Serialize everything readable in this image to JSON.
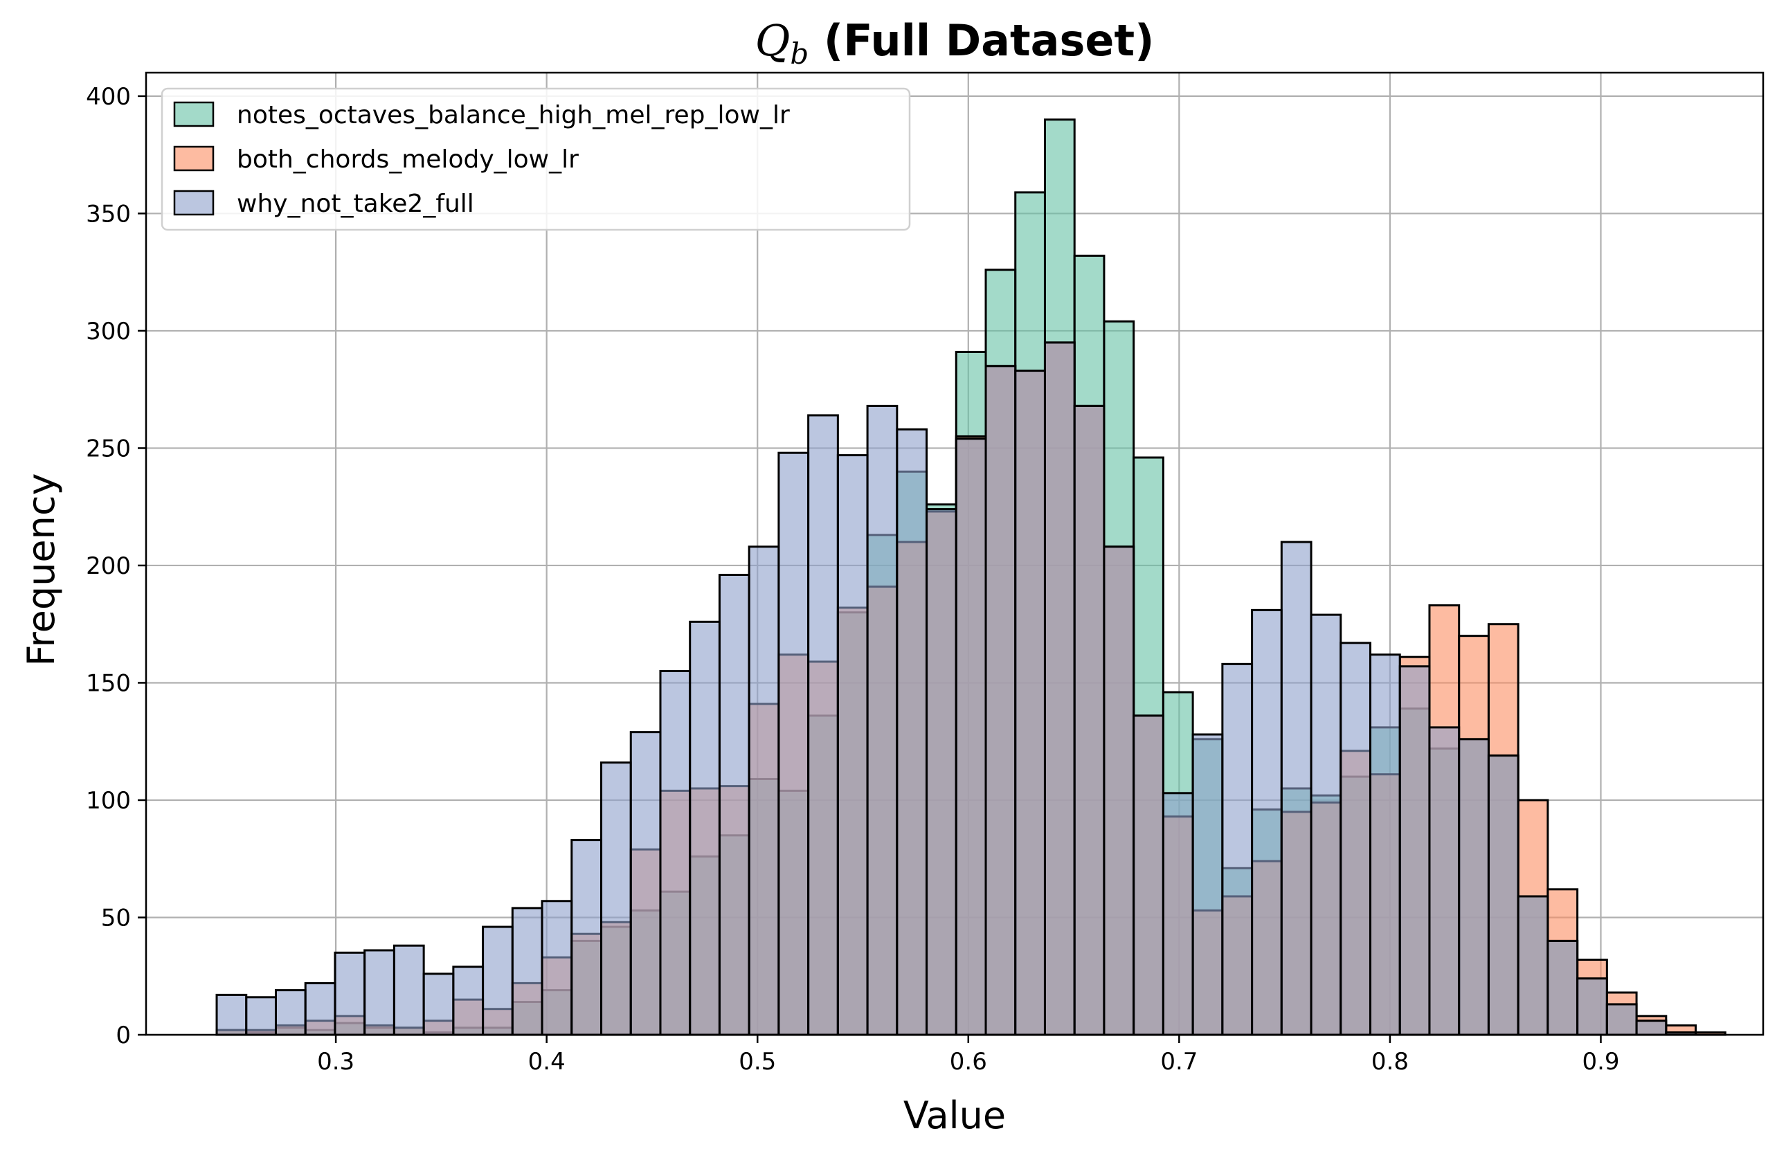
{
  "chart_data": {
    "type": "histogram",
    "title": {
      "symbol": "Q",
      "subscript": "b",
      "text": " (Full Dataset)"
    },
    "xlabel": "Value",
    "ylabel": "Frequency",
    "xlim": [
      0.21,
      0.977
    ],
    "ylim": [
      0,
      410
    ],
    "xticks": [
      0.3,
      0.4,
      0.5,
      0.6,
      0.7,
      0.8,
      0.9
    ],
    "xtick_labels": [
      "0.3",
      "0.4",
      "0.5",
      "0.6",
      "0.7",
      "0.8",
      "0.9"
    ],
    "yticks": [
      0,
      50,
      100,
      150,
      200,
      250,
      300,
      350,
      400
    ],
    "ytick_labels": [
      "0",
      "50",
      "100",
      "150",
      "200",
      "250",
      "300",
      "350",
      "400"
    ],
    "grid": true,
    "legend_position": "top-left",
    "bin_start": 0.2435,
    "bin_width": 0.01403,
    "series": [
      {
        "name": "notes_octaves_balance_high_mel_rep_low_lr",
        "color": "#66c2a5",
        "values": [
          2,
          1,
          3,
          2,
          5,
          3,
          3,
          1,
          3,
          3,
          14,
          19,
          40,
          46,
          53,
          61,
          76,
          85,
          109,
          104,
          136,
          180,
          213,
          240,
          226,
          291,
          326,
          359,
          390,
          332,
          304,
          246,
          146,
          126,
          71,
          96,
          105,
          102,
          110,
          131,
          139,
          122,
          126,
          119,
          59,
          40,
          24,
          13,
          6,
          1,
          0
        ]
      },
      {
        "name": "both_chords_melody_low_lr",
        "color": "#fc8d62",
        "values": [
          2,
          2,
          4,
          6,
          8,
          4,
          3,
          6,
          15,
          11,
          22,
          33,
          43,
          48,
          79,
          104,
          105,
          106,
          141,
          162,
          159,
          182,
          191,
          210,
          223,
          255,
          285,
          283,
          295,
          268,
          208,
          136,
          93,
          53,
          59,
          74,
          95,
          99,
          121,
          111,
          161,
          183,
          170,
          175,
          100,
          62,
          32,
          18,
          8,
          4,
          1
        ]
      },
      {
        "name": "why_not_take2_full",
        "color": "#8da0cb",
        "values": [
          17,
          16,
          19,
          22,
          35,
          36,
          38,
          26,
          29,
          46,
          54,
          57,
          83,
          116,
          129,
          155,
          176,
          196,
          208,
          248,
          264,
          247,
          268,
          258,
          224,
          254,
          285,
          283,
          295,
          268,
          208,
          136,
          103,
          128,
          158,
          181,
          210,
          179,
          167,
          162,
          157,
          131,
          126,
          119,
          59,
          40,
          24,
          13,
          6,
          1,
          0
        ]
      }
    ]
  }
}
